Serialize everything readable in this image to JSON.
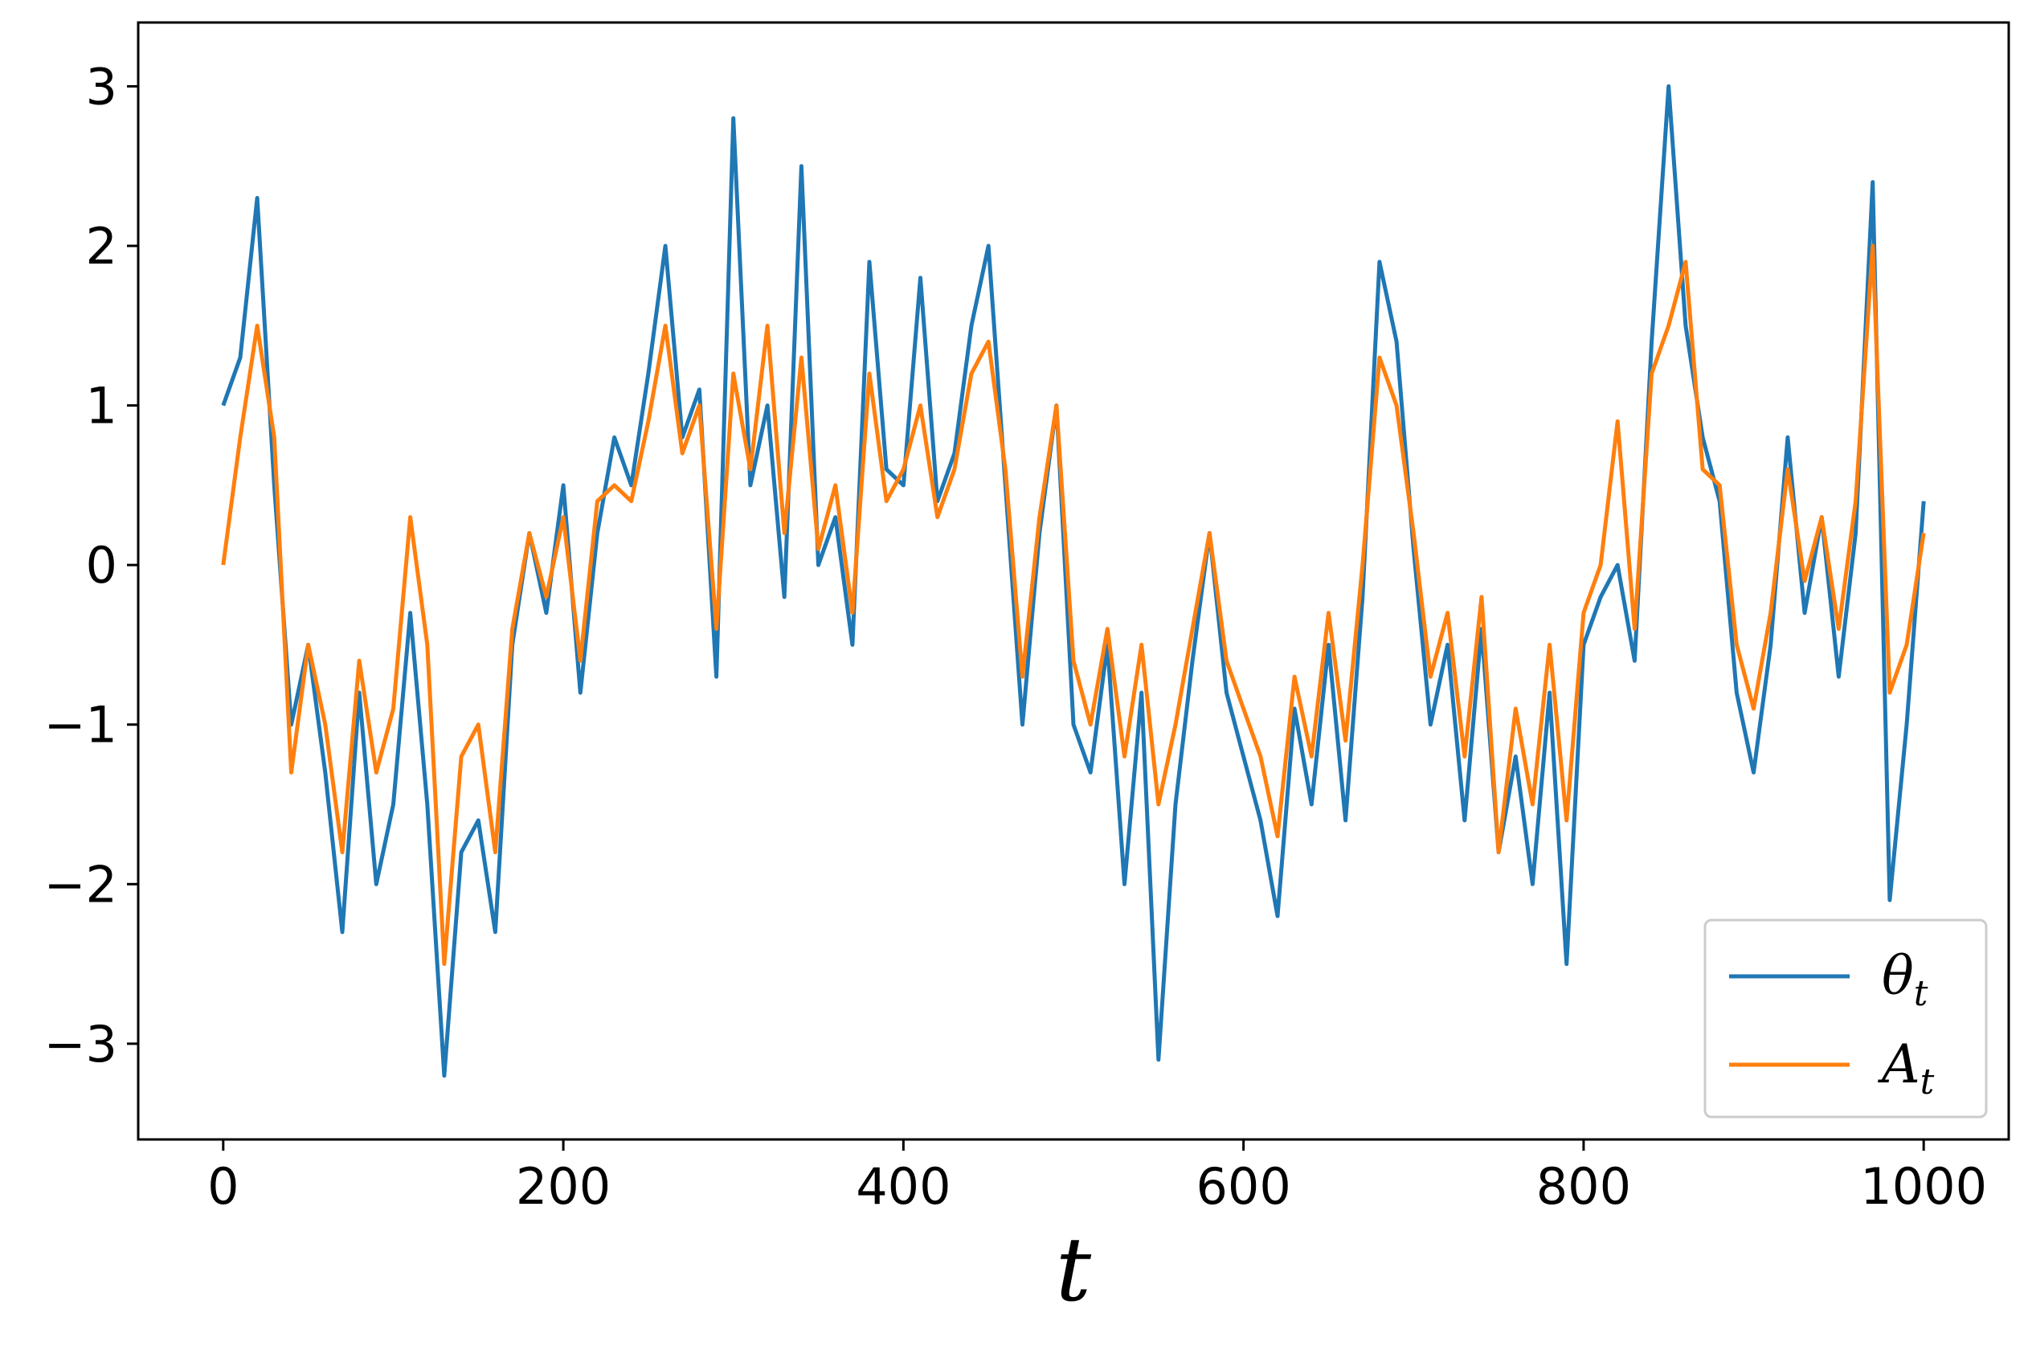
{
  "chart_data": {
    "type": "line",
    "title": "",
    "xlabel": "t",
    "ylabel": "",
    "xlim": [
      -50,
      1050
    ],
    "ylim": [
      -3.6,
      3.4
    ],
    "xticks": [
      0,
      200,
      400,
      600,
      800,
      1000
    ],
    "yticks": [
      3,
      2,
      1,
      0,
      -1,
      -2,
      -3
    ],
    "ytick_labels": [
      "3",
      "2",
      "1",
      "0",
      "−1",
      "−2",
      "−3"
    ],
    "grid": false,
    "legend_position": "bottom-right",
    "series": [
      {
        "name": "θ",
        "name_subscript": "t",
        "color": "#1f77b4",
        "x": [
          0,
          10,
          20,
          30,
          40,
          50,
          60,
          70,
          80,
          90,
          100,
          110,
          120,
          130,
          140,
          150,
          160,
          170,
          180,
          190,
          200,
          210,
          220,
          230,
          240,
          250,
          260,
          270,
          280,
          290,
          300,
          310,
          320,
          330,
          340,
          350,
          360,
          370,
          380,
          390,
          400,
          410,
          420,
          430,
          440,
          450,
          460,
          470,
          480,
          490,
          500,
          510,
          520,
          530,
          540,
          550,
          560,
          570,
          580,
          590,
          600,
          610,
          620,
          630,
          640,
          650,
          660,
          670,
          680,
          690,
          700,
          710,
          720,
          730,
          740,
          750,
          760,
          770,
          780,
          790,
          800,
          810,
          820,
          830,
          840,
          850,
          860,
          870,
          880,
          890,
          900,
          910,
          920,
          930,
          940,
          950,
          960,
          970,
          980,
          990,
          1000
        ],
        "values": [
          1.0,
          1.3,
          2.3,
          0.5,
          -1.0,
          -0.5,
          -1.3,
          -2.3,
          -0.8,
          -2.0,
          -1.5,
          -0.3,
          -1.5,
          -3.2,
          -1.8,
          -1.6,
          -2.3,
          -0.5,
          0.2,
          -0.3,
          0.5,
          -0.8,
          0.2,
          0.8,
          0.5,
          1.2,
          2.0,
          0.8,
          1.1,
          -0.7,
          2.8,
          0.5,
          1.0,
          -0.2,
          2.5,
          0.0,
          0.3,
          -0.5,
          1.9,
          0.6,
          0.5,
          1.8,
          0.4,
          0.7,
          1.5,
          2.0,
          0.5,
          -1.0,
          0.2,
          1.0,
          -1.0,
          -1.3,
          -0.5,
          -2.0,
          -0.8,
          -3.1,
          -1.5,
          -0.6,
          0.2,
          -0.8,
          -1.2,
          -1.6,
          -2.2,
          -0.9,
          -1.5,
          -0.5,
          -1.6,
          -0.2,
          1.9,
          1.4,
          0.1,
          -1.0,
          -0.5,
          -1.6,
          -0.4,
          -1.8,
          -1.2,
          -2.0,
          -0.8,
          -2.5,
          -0.5,
          -0.2,
          0.0,
          -0.6,
          1.4,
          3.0,
          1.5,
          0.8,
          0.4,
          -0.8,
          -1.3,
          -0.5,
          0.8,
          -0.3,
          0.3,
          -0.7,
          0.2,
          2.4,
          -2.1,
          -1.0,
          0.4
        ]
      },
      {
        "name": "A",
        "name_subscript": "t",
        "color": "#ff7f0e",
        "x": [
          0,
          10,
          20,
          30,
          40,
          50,
          60,
          70,
          80,
          90,
          100,
          110,
          120,
          130,
          140,
          150,
          160,
          170,
          180,
          190,
          200,
          210,
          220,
          230,
          240,
          250,
          260,
          270,
          280,
          290,
          300,
          310,
          320,
          330,
          340,
          350,
          360,
          370,
          380,
          390,
          400,
          410,
          420,
          430,
          440,
          450,
          460,
          470,
          480,
          490,
          500,
          510,
          520,
          530,
          540,
          550,
          560,
          570,
          580,
          590,
          600,
          610,
          620,
          630,
          640,
          650,
          660,
          670,
          680,
          690,
          700,
          710,
          720,
          730,
          740,
          750,
          760,
          770,
          780,
          790,
          800,
          810,
          820,
          830,
          840,
          850,
          860,
          870,
          880,
          890,
          900,
          910,
          920,
          930,
          940,
          950,
          960,
          970,
          980,
          990,
          1000
        ],
        "values": [
          0.0,
          0.8,
          1.5,
          0.8,
          -1.3,
          -0.5,
          -1.0,
          -1.8,
          -0.6,
          -1.3,
          -0.9,
          0.3,
          -0.5,
          -2.5,
          -1.2,
          -1.0,
          -1.8,
          -0.4,
          0.2,
          -0.2,
          0.3,
          -0.6,
          0.4,
          0.5,
          0.4,
          0.9,
          1.5,
          0.7,
          1.0,
          -0.4,
          1.2,
          0.6,
          1.5,
          0.2,
          1.3,
          0.1,
          0.5,
          -0.3,
          1.2,
          0.4,
          0.6,
          1.0,
          0.3,
          0.6,
          1.2,
          1.4,
          0.6,
          -0.7,
          0.3,
          1.0,
          -0.6,
          -1.0,
          -0.4,
          -1.2,
          -0.5,
          -1.5,
          -1.0,
          -0.4,
          0.2,
          -0.6,
          -0.9,
          -1.2,
          -1.7,
          -0.7,
          -1.2,
          -0.3,
          -1.1,
          0.0,
          1.3,
          1.0,
          0.2,
          -0.7,
          -0.3,
          -1.2,
          -0.2,
          -1.8,
          -0.9,
          -1.5,
          -0.5,
          -1.6,
          -0.3,
          0.0,
          0.9,
          -0.4,
          1.2,
          1.5,
          1.9,
          0.6,
          0.5,
          -0.5,
          -0.9,
          -0.3,
          0.6,
          -0.1,
          0.3,
          -0.4,
          0.4,
          2.0,
          -0.8,
          -0.5,
          0.2
        ]
      }
    ]
  }
}
